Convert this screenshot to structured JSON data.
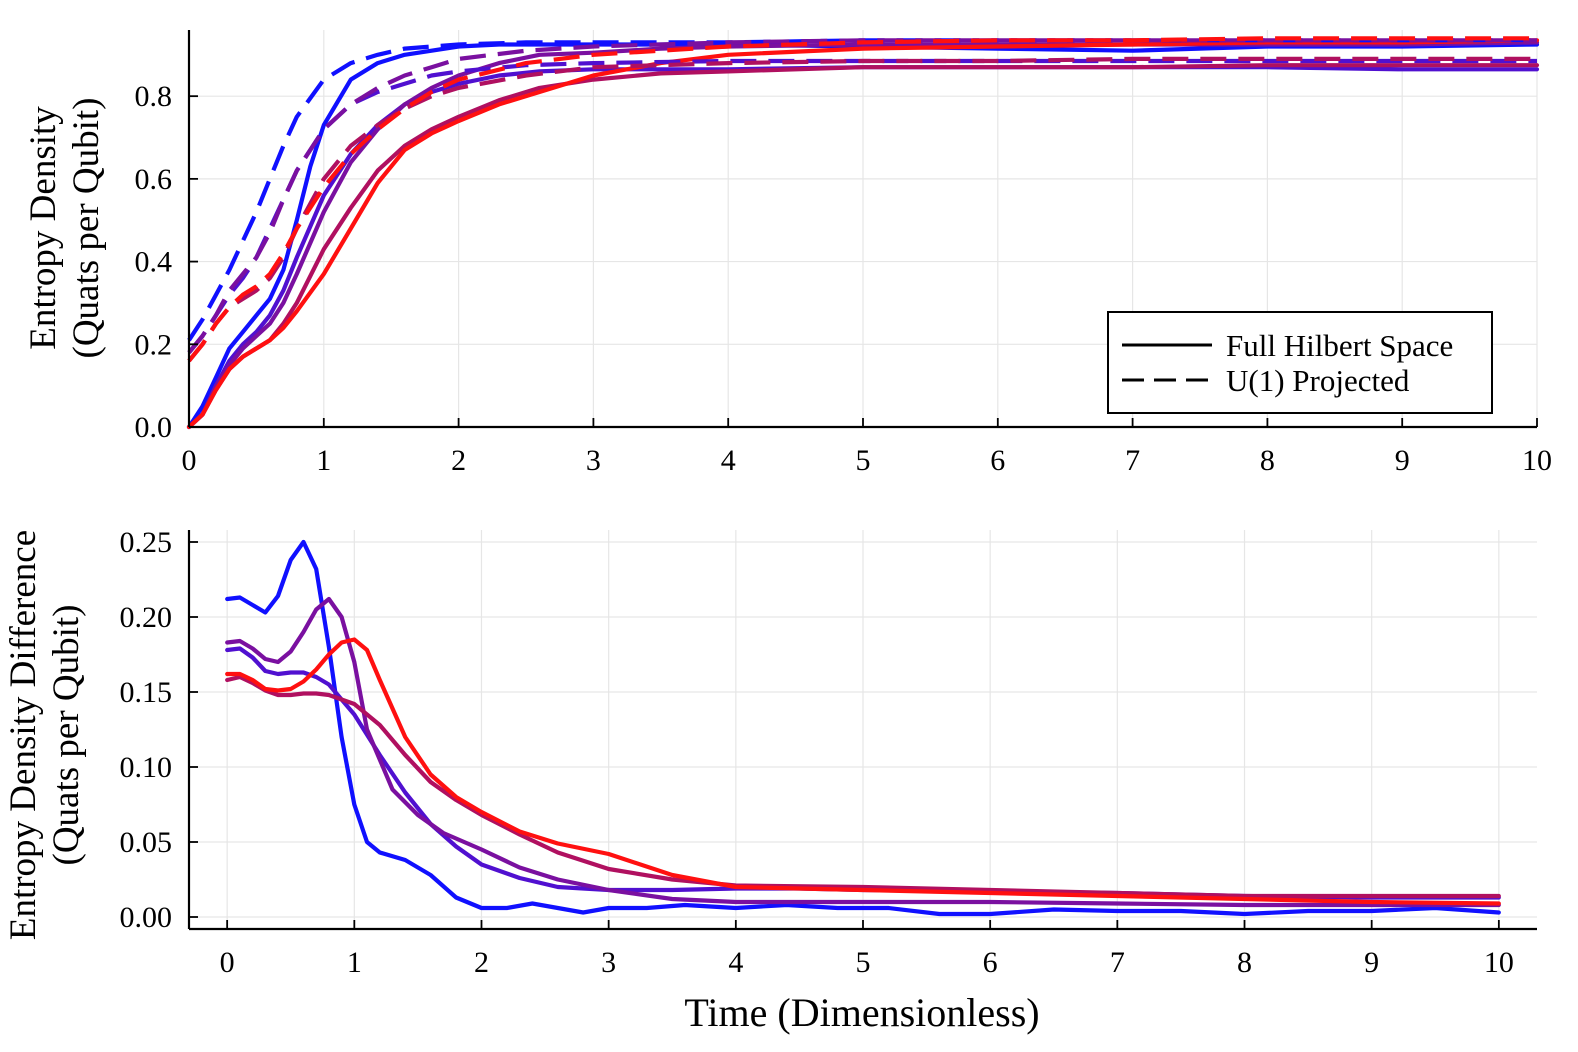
{
  "chart_data": [
    {
      "type": "line",
      "panel": "top",
      "title": "",
      "xlabel": "",
      "ylabel_line1": "Entropy Density",
      "ylabel_line2": "(Quats per Qubit)",
      "xlim": [
        0,
        10
      ],
      "ylim": [
        0,
        0.96
      ],
      "xticks": [
        0,
        1,
        2,
        3,
        4,
        5,
        6,
        7,
        8,
        9,
        10
      ],
      "xtick_labels": [
        "0",
        "1",
        "2",
        "3",
        "4",
        "5",
        "6",
        "7",
        "8",
        "9",
        "10"
      ],
      "yticks": [
        0,
        0.2,
        0.4,
        0.6,
        0.8
      ],
      "ytick_labels": [
        "0.0",
        "0.2",
        "0.4",
        "0.6",
        "0.8"
      ],
      "grid": true,
      "legend": {
        "position": "bottom-right",
        "entries": [
          {
            "label": "Full Hilbert Space",
            "style": "solid"
          },
          {
            "label": "U(1) Projected",
            "style": "dashed"
          }
        ]
      },
      "series": [
        {
          "name": "full-1",
          "style": "solid",
          "color": "#1010ff",
          "x": [
            0,
            0.1,
            0.2,
            0.3,
            0.4,
            0.5,
            0.6,
            0.7,
            0.8,
            0.9,
            1,
            1.2,
            1.4,
            1.6,
            1.8,
            2,
            2.3,
            2.6,
            3,
            3.5,
            4,
            5,
            6,
            7,
            8,
            9,
            10
          ],
          "y": [
            0,
            0.05,
            0.12,
            0.19,
            0.23,
            0.27,
            0.31,
            0.38,
            0.5,
            0.63,
            0.73,
            0.84,
            0.88,
            0.9,
            0.91,
            0.92,
            0.925,
            0.925,
            0.925,
            0.925,
            0.925,
            0.92,
            0.915,
            0.91,
            0.92,
            0.92,
            0.925
          ]
        },
        {
          "name": "full-2",
          "style": "solid",
          "color": "#5010d0",
          "x": [
            0,
            0.1,
            0.2,
            0.3,
            0.4,
            0.5,
            0.6,
            0.7,
            0.8,
            1,
            1.2,
            1.4,
            1.6,
            1.8,
            2,
            2.3,
            2.6,
            3,
            3.5,
            4,
            5,
            6,
            7,
            8,
            9,
            10
          ],
          "y": [
            0,
            0.03,
            0.1,
            0.16,
            0.2,
            0.23,
            0.27,
            0.33,
            0.41,
            0.56,
            0.66,
            0.73,
            0.78,
            0.81,
            0.83,
            0.85,
            0.86,
            0.865,
            0.865,
            0.865,
            0.87,
            0.87,
            0.87,
            0.87,
            0.865,
            0.865
          ]
        },
        {
          "name": "full-3",
          "style": "solid",
          "color": "#7a10a0",
          "x": [
            0,
            0.1,
            0.2,
            0.3,
            0.4,
            0.5,
            0.6,
            0.7,
            0.8,
            1,
            1.2,
            1.4,
            1.6,
            1.8,
            2,
            2.3,
            2.6,
            3,
            3.5,
            4,
            5,
            6,
            7,
            8,
            9,
            10
          ],
          "y": [
            0,
            0.03,
            0.1,
            0.15,
            0.19,
            0.22,
            0.25,
            0.3,
            0.37,
            0.52,
            0.64,
            0.72,
            0.78,
            0.82,
            0.85,
            0.88,
            0.9,
            0.905,
            0.915,
            0.92,
            0.925,
            0.925,
            0.925,
            0.925,
            0.925,
            0.93
          ]
        },
        {
          "name": "full-4",
          "style": "solid",
          "color": "#b01060",
          "x": [
            0,
            0.1,
            0.2,
            0.3,
            0.4,
            0.5,
            0.6,
            0.7,
            0.8,
            1,
            1.2,
            1.4,
            1.6,
            1.8,
            2,
            2.3,
            2.6,
            3,
            3.5,
            4,
            5,
            6,
            7,
            8,
            9,
            10
          ],
          "y": [
            0,
            0.03,
            0.09,
            0.14,
            0.17,
            0.19,
            0.21,
            0.25,
            0.3,
            0.43,
            0.53,
            0.62,
            0.68,
            0.72,
            0.75,
            0.79,
            0.82,
            0.84,
            0.855,
            0.86,
            0.87,
            0.87,
            0.87,
            0.875,
            0.875,
            0.875
          ]
        },
        {
          "name": "full-5",
          "style": "solid",
          "color": "#ff1010",
          "x": [
            0,
            0.1,
            0.2,
            0.3,
            0.4,
            0.5,
            0.6,
            0.7,
            0.8,
            1,
            1.2,
            1.4,
            1.6,
            1.8,
            2,
            2.3,
            2.6,
            3,
            3.5,
            4,
            5,
            6,
            7,
            8,
            9,
            10
          ],
          "y": [
            0,
            0.03,
            0.09,
            0.14,
            0.17,
            0.19,
            0.21,
            0.24,
            0.28,
            0.37,
            0.48,
            0.59,
            0.67,
            0.71,
            0.74,
            0.78,
            0.81,
            0.85,
            0.88,
            0.9,
            0.915,
            0.92,
            0.925,
            0.93,
            0.93,
            0.935
          ]
        },
        {
          "name": "u1-1",
          "style": "dashed",
          "color": "#1010ff",
          "x": [
            0,
            0.1,
            0.2,
            0.3,
            0.4,
            0.5,
            0.6,
            0.7,
            0.8,
            1,
            1.2,
            1.4,
            1.6,
            1.8,
            2,
            2.5,
            3,
            4,
            5,
            6,
            7,
            8,
            9,
            10
          ],
          "y": [
            0.21,
            0.26,
            0.32,
            0.38,
            0.45,
            0.52,
            0.6,
            0.68,
            0.75,
            0.84,
            0.88,
            0.9,
            0.915,
            0.92,
            0.925,
            0.93,
            0.93,
            0.93,
            0.935,
            0.935,
            0.935,
            0.935,
            0.935,
            0.935
          ]
        },
        {
          "name": "u1-2",
          "style": "dashed",
          "color": "#5010d0",
          "x": [
            0,
            0.1,
            0.2,
            0.3,
            0.4,
            0.5,
            0.6,
            0.7,
            0.8,
            1,
            1.2,
            1.4,
            1.6,
            1.8,
            2,
            2.5,
            3,
            4,
            5,
            6,
            7,
            8,
            9,
            10
          ],
          "y": [
            0.18,
            0.22,
            0.27,
            0.32,
            0.36,
            0.41,
            0.48,
            0.55,
            0.62,
            0.72,
            0.78,
            0.81,
            0.83,
            0.85,
            0.86,
            0.875,
            0.88,
            0.885,
            0.885,
            0.885,
            0.885,
            0.885,
            0.885,
            0.885
          ]
        },
        {
          "name": "u1-3",
          "style": "dashed",
          "color": "#7a10a0",
          "x": [
            0,
            0.1,
            0.2,
            0.3,
            0.4,
            0.5,
            0.6,
            0.7,
            0.8,
            1,
            1.2,
            1.4,
            1.6,
            1.8,
            2,
            2.5,
            3,
            4,
            5,
            6,
            7,
            8,
            9,
            10
          ],
          "y": [
            0.18,
            0.22,
            0.27,
            0.33,
            0.37,
            0.41,
            0.47,
            0.55,
            0.62,
            0.72,
            0.78,
            0.82,
            0.85,
            0.87,
            0.89,
            0.91,
            0.92,
            0.93,
            0.935,
            0.935,
            0.935,
            0.935,
            0.935,
            0.935
          ]
        },
        {
          "name": "u1-4",
          "style": "dashed",
          "color": "#b01060",
          "x": [
            0,
            0.1,
            0.2,
            0.3,
            0.4,
            0.5,
            0.6,
            0.7,
            0.8,
            1,
            1.2,
            1.4,
            1.6,
            1.8,
            2,
            2.5,
            3,
            4,
            5,
            6,
            7,
            8,
            9,
            10
          ],
          "y": [
            0.16,
            0.2,
            0.25,
            0.29,
            0.31,
            0.33,
            0.36,
            0.41,
            0.48,
            0.6,
            0.68,
            0.73,
            0.77,
            0.8,
            0.82,
            0.85,
            0.87,
            0.88,
            0.885,
            0.885,
            0.89,
            0.89,
            0.89,
            0.89
          ]
        },
        {
          "name": "u1-5",
          "style": "dashed",
          "color": "#ff1010",
          "x": [
            0,
            0.1,
            0.2,
            0.3,
            0.4,
            0.5,
            0.6,
            0.7,
            0.8,
            1,
            1.2,
            1.4,
            1.6,
            1.8,
            2,
            2.5,
            3,
            4,
            5,
            6,
            7,
            8,
            9,
            10
          ],
          "y": [
            0.16,
            0.2,
            0.25,
            0.29,
            0.32,
            0.34,
            0.37,
            0.42,
            0.48,
            0.58,
            0.66,
            0.72,
            0.77,
            0.81,
            0.84,
            0.88,
            0.9,
            0.92,
            0.93,
            0.935,
            0.935,
            0.94,
            0.94,
            0.94
          ]
        }
      ]
    },
    {
      "type": "line",
      "panel": "bottom",
      "title": "",
      "xlabel": "Time (Dimensionless)",
      "ylabel_line1": "Entropy Density Difference",
      "ylabel_line2": "(Quats per Qubit)",
      "xlim": [
        -0.3,
        10.3
      ],
      "ylim": [
        -0.008,
        0.258
      ],
      "xticks": [
        0,
        1,
        2,
        3,
        4,
        5,
        6,
        7,
        8,
        9,
        10
      ],
      "xtick_labels": [
        "0",
        "1",
        "2",
        "3",
        "4",
        "5",
        "6",
        "7",
        "8",
        "9",
        "10"
      ],
      "yticks": [
        0,
        0.05,
        0.1,
        0.15,
        0.2,
        0.25
      ],
      "ytick_labels": [
        "0.00",
        "0.05",
        "0.10",
        "0.15",
        "0.20",
        "0.25"
      ],
      "grid": true,
      "series": [
        {
          "name": "diff-1",
          "color": "#1010ff",
          "x": [
            0,
            0.1,
            0.2,
            0.3,
            0.4,
            0.5,
            0.6,
            0.7,
            0.8,
            0.9,
            1,
            1.1,
            1.2,
            1.4,
            1.6,
            1.8,
            2,
            2.2,
            2.4,
            2.6,
            2.8,
            3,
            3.3,
            3.6,
            4,
            4.4,
            4.8,
            5.2,
            5.6,
            6,
            6.5,
            7,
            7.5,
            8,
            8.5,
            9,
            9.5,
            10
          ],
          "y": [
            0.212,
            0.213,
            0.208,
            0.203,
            0.214,
            0.238,
            0.25,
            0.232,
            0.18,
            0.12,
            0.075,
            0.05,
            0.043,
            0.038,
            0.028,
            0.013,
            0.006,
            0.006,
            0.009,
            0.006,
            0.003,
            0.006,
            0.006,
            0.008,
            0.006,
            0.008,
            0.006,
            0.006,
            0.002,
            0.002,
            0.005,
            0.004,
            0.004,
            0.002,
            0.004,
            0.004,
            0.006,
            0.003
          ]
        },
        {
          "name": "diff-2",
          "color": "#5010d0",
          "x": [
            0,
            0.1,
            0.2,
            0.3,
            0.4,
            0.5,
            0.6,
            0.7,
            0.8,
            1,
            1.2,
            1.4,
            1.6,
            1.8,
            2,
            2.3,
            2.6,
            3,
            3.5,
            4,
            4.5,
            5,
            6,
            7,
            8,
            9,
            10
          ],
          "y": [
            0.178,
            0.179,
            0.173,
            0.164,
            0.162,
            0.163,
            0.163,
            0.16,
            0.155,
            0.135,
            0.108,
            0.083,
            0.062,
            0.047,
            0.035,
            0.026,
            0.02,
            0.018,
            0.018,
            0.019,
            0.019,
            0.018,
            0.017,
            0.016,
            0.014,
            0.013,
            0.013
          ]
        },
        {
          "name": "diff-3",
          "color": "#7a10a0",
          "x": [
            0,
            0.1,
            0.2,
            0.3,
            0.4,
            0.5,
            0.6,
            0.7,
            0.8,
            0.9,
            1,
            1.1,
            1.3,
            1.5,
            1.7,
            2,
            2.3,
            2.6,
            3,
            3.5,
            4,
            5,
            6,
            7,
            8,
            9,
            10
          ],
          "y": [
            0.183,
            0.184,
            0.179,
            0.172,
            0.17,
            0.177,
            0.19,
            0.205,
            0.212,
            0.2,
            0.17,
            0.125,
            0.085,
            0.068,
            0.056,
            0.045,
            0.033,
            0.025,
            0.018,
            0.012,
            0.01,
            0.01,
            0.01,
            0.009,
            0.008,
            0.008,
            0.008
          ]
        },
        {
          "name": "diff-4",
          "color": "#b01060",
          "x": [
            0,
            0.1,
            0.2,
            0.3,
            0.4,
            0.5,
            0.6,
            0.7,
            0.8,
            1,
            1.2,
            1.4,
            1.6,
            1.8,
            2,
            2.3,
            2.6,
            3,
            3.5,
            4,
            5,
            6,
            7,
            8,
            9,
            10
          ],
          "y": [
            0.158,
            0.16,
            0.156,
            0.151,
            0.148,
            0.148,
            0.149,
            0.149,
            0.148,
            0.142,
            0.128,
            0.108,
            0.09,
            0.078,
            0.068,
            0.055,
            0.043,
            0.032,
            0.025,
            0.021,
            0.02,
            0.018,
            0.016,
            0.014,
            0.014,
            0.014
          ]
        },
        {
          "name": "diff-5",
          "color": "#ff1010",
          "x": [
            0,
            0.1,
            0.2,
            0.3,
            0.4,
            0.5,
            0.6,
            0.7,
            0.8,
            0.9,
            1,
            1.1,
            1.2,
            1.4,
            1.6,
            1.8,
            2,
            2.3,
            2.6,
            3,
            3.5,
            4,
            5,
            6,
            7,
            8,
            9,
            10
          ],
          "y": [
            0.162,
            0.162,
            0.158,
            0.152,
            0.151,
            0.152,
            0.157,
            0.165,
            0.175,
            0.183,
            0.185,
            0.178,
            0.158,
            0.12,
            0.095,
            0.08,
            0.07,
            0.057,
            0.049,
            0.042,
            0.028,
            0.02,
            0.018,
            0.016,
            0.014,
            0.012,
            0.01,
            0.009
          ]
        }
      ]
    }
  ]
}
